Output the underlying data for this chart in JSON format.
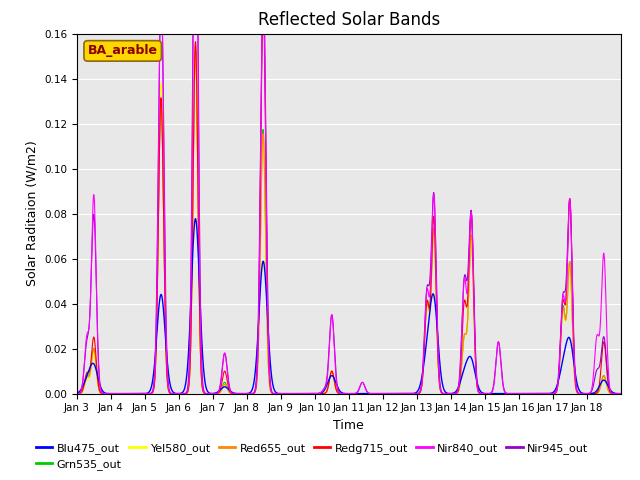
{
  "title": "Reflected Solar Bands",
  "xlabel": "Time",
  "ylabel": "Solar Raditaion (W/m2)",
  "ylim": [
    0,
    0.16
  ],
  "xtick_labels": [
    "Jan 3",
    "Jan 4",
    "Jan 5",
    "Jan 6",
    "Jan 7",
    "Jan 8",
    "Jan 9",
    "Jan 10",
    "Jan 11",
    "Jan 12",
    "Jan 13",
    "Jan 14",
    "Jan 15",
    "Jan 16",
    "Jan 17",
    "Jan 18"
  ],
  "legend_label": "BA_arable",
  "legend_text_color": "#8B0000",
  "legend_box_facecolor": "#FFD700",
  "legend_box_edgecolor": "#8B6914",
  "series_colors": {
    "Blu475_out": "#0000FF",
    "Grn535_out": "#00CC00",
    "Yel580_out": "#FFFF00",
    "Red655_out": "#FF8800",
    "Redg715_out": "#FF0000",
    "Nir840_out": "#FF00FF",
    "Nir945_out": "#9900CC"
  },
  "background_color": "#E8E8E8",
  "title_fontsize": 12,
  "axis_fontsize": 8,
  "label_fontsize": 9
}
